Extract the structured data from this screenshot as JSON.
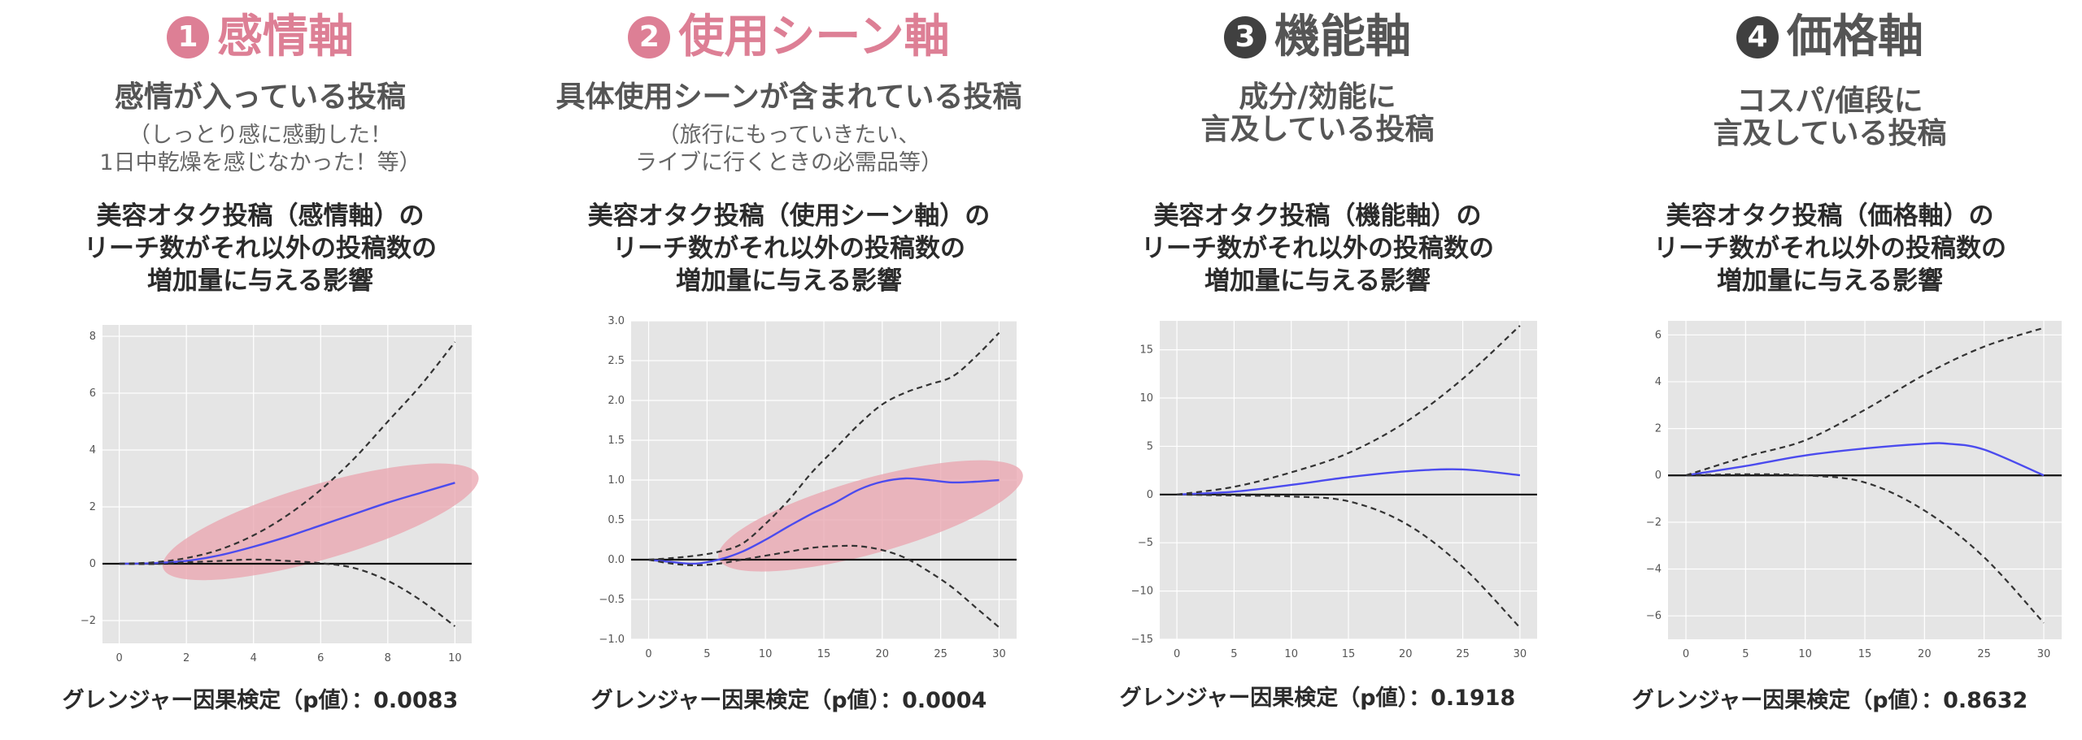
{
  "colors": {
    "pink_heading": "#dd7f95",
    "gray_heading": "#555555",
    "badge_gray": "#404040",
    "plot_bg": "#e5e5e5",
    "irf_line": "#4b4bee",
    "highlight": "#e9a3ae"
  },
  "panels": [
    {
      "number": "1",
      "title": "感情軸",
      "desc_lines": [
        "感情が入っている投稿"
      ],
      "note_lines": [
        "（しっとり感に感動した！",
        "1日中乾燥を感じなかった！等）"
      ],
      "chart_title_lines": [
        "美容オタク投稿（感情軸）の",
        "リーチ数がそれ以外の投稿数の",
        "増加量に与える影響"
      ],
      "pvalue_text": "グレンジャー因果検定（p値）：0.0083"
    },
    {
      "number": "2",
      "title": "使用シーン軸",
      "desc_lines": [
        "具体使用シーンが含まれている投稿"
      ],
      "note_lines": [
        "（旅行にもっていきたい、",
        "ライブに行くときの必需品等）"
      ],
      "chart_title_lines": [
        "美容オタク投稿（使用シーン軸）の",
        "リーチ数がそれ以外の投稿数の",
        "増加量に与える影響"
      ],
      "pvalue_text": "グレンジャー因果検定（p値）：0.0004"
    },
    {
      "number": "3",
      "title": "機能軸",
      "desc_lines": [
        "成分/効能に",
        "言及している投稿"
      ],
      "note_lines": [],
      "chart_title_lines": [
        "美容オタク投稿（機能軸）の",
        "リーチ数がそれ以外の投稿数の",
        "増加量に与える影響"
      ],
      "pvalue_text": "グレンジャー因果検定（p値）：0.1918"
    },
    {
      "number": "4",
      "title": "価格軸",
      "desc_lines": [
        "コスパ/値段に",
        "言及している投稿"
      ],
      "note_lines": [],
      "chart_title_lines": [
        "美容オタク投稿（価格軸）の",
        "リーチ数がそれ以外の投稿数の",
        "増加量に与える影響"
      ],
      "pvalue_text": "グレンジャー因果検定（p値）：0.8632"
    }
  ],
  "chart_data": [
    {
      "type": "line",
      "xlim": [
        -0.5,
        10.5
      ],
      "ylim": [
        -2.8,
        8.4
      ],
      "xticks": [
        0,
        2,
        4,
        6,
        8,
        10
      ],
      "yticks": [
        -2,
        0,
        2,
        4,
        6,
        8
      ],
      "highlighted": true,
      "series": [
        {
          "role": "irf",
          "x": [
            0,
            1,
            2,
            3,
            4,
            5,
            6,
            7,
            8,
            9,
            10
          ],
          "y": [
            0,
            0.02,
            0.1,
            0.3,
            0.6,
            0.95,
            1.35,
            1.75,
            2.15,
            2.5,
            2.85
          ]
        },
        {
          "role": "upper",
          "x": [
            0,
            1,
            2,
            3,
            4,
            5,
            6,
            7,
            8,
            9,
            10
          ],
          "y": [
            0,
            0.05,
            0.2,
            0.5,
            1.0,
            1.7,
            2.6,
            3.7,
            5.0,
            6.3,
            7.8
          ]
        },
        {
          "role": "lower",
          "x": [
            0,
            1,
            2,
            3,
            4,
            5,
            6,
            7,
            8,
            9,
            10
          ],
          "y": [
            0,
            -0.01,
            0.05,
            0.1,
            0.15,
            0.1,
            0.02,
            -0.15,
            -0.6,
            -1.3,
            -2.2
          ]
        }
      ],
      "grid": true,
      "legend": "none"
    },
    {
      "type": "line",
      "xlim": [
        -1.5,
        31.5
      ],
      "ylim": [
        -1.0,
        3.0
      ],
      "xticks": [
        0,
        5,
        10,
        15,
        20,
        25,
        30
      ],
      "yticks": [
        -1.0,
        -0.5,
        0.0,
        0.5,
        1.0,
        1.5,
        2.0,
        2.5,
        3.0
      ],
      "highlighted": true,
      "series": [
        {
          "role": "irf",
          "x": [
            0,
            2,
            4,
            6,
            8,
            10,
            12,
            14,
            16,
            18,
            20,
            22,
            24,
            26,
            28,
            30
          ],
          "y": [
            0,
            -0.03,
            -0.05,
            0.0,
            0.1,
            0.25,
            0.42,
            0.58,
            0.72,
            0.88,
            0.98,
            1.02,
            1.0,
            0.97,
            0.98,
            1.0
          ]
        },
        {
          "role": "upper",
          "x": [
            0,
            2,
            4,
            6,
            8,
            10,
            12,
            14,
            16,
            18,
            20,
            22,
            24,
            26,
            28,
            30
          ],
          "y": [
            0,
            0.02,
            0.05,
            0.1,
            0.2,
            0.45,
            0.75,
            1.1,
            1.4,
            1.7,
            1.95,
            2.1,
            2.2,
            2.3,
            2.55,
            2.85
          ]
        },
        {
          "role": "lower",
          "x": [
            0,
            2,
            4,
            6,
            8,
            10,
            12,
            14,
            16,
            18,
            20,
            22,
            24,
            26,
            28,
            30
          ],
          "y": [
            0,
            -0.05,
            -0.07,
            -0.05,
            0.0,
            0.05,
            0.1,
            0.15,
            0.17,
            0.17,
            0.12,
            0.02,
            -0.15,
            -0.35,
            -0.6,
            -0.85
          ]
        }
      ],
      "grid": true,
      "legend": "none"
    },
    {
      "type": "line",
      "xlim": [
        -1.5,
        31.5
      ],
      "ylim": [
        -15,
        18
      ],
      "xticks": [
        0,
        5,
        10,
        15,
        20,
        25,
        30
      ],
      "yticks": [
        -15,
        -10,
        -5,
        0,
        5,
        10,
        15
      ],
      "highlighted": false,
      "series": [
        {
          "role": "irf",
          "x": [
            0,
            5,
            10,
            15,
            20,
            25,
            30
          ],
          "y": [
            0,
            0.3,
            1.0,
            1.8,
            2.4,
            2.6,
            2.0
          ]
        },
        {
          "role": "upper",
          "x": [
            0,
            5,
            10,
            15,
            20,
            25,
            30
          ],
          "y": [
            0,
            0.8,
            2.3,
            4.3,
            7.5,
            12.0,
            17.5
          ]
        },
        {
          "role": "lower",
          "x": [
            0,
            5,
            10,
            15,
            20,
            25,
            30
          ],
          "y": [
            0,
            -0.1,
            -0.2,
            -0.7,
            -3.0,
            -7.5,
            -13.8
          ]
        }
      ],
      "grid": true,
      "legend": "none"
    },
    {
      "type": "line",
      "xlim": [
        -1.5,
        31.5
      ],
      "ylim": [
        -7,
        6.6
      ],
      "xticks": [
        0,
        5,
        10,
        15,
        20,
        25,
        30
      ],
      "yticks": [
        -6,
        -4,
        -2,
        0,
        2,
        4,
        6
      ],
      "highlighted": false,
      "series": [
        {
          "role": "irf",
          "x": [
            0,
            5,
            10,
            15,
            20,
            22,
            25,
            30
          ],
          "y": [
            0,
            0.4,
            0.85,
            1.15,
            1.35,
            1.35,
            1.1,
            0.0
          ]
        },
        {
          "role": "upper",
          "x": [
            0,
            5,
            10,
            15,
            20,
            25,
            30
          ],
          "y": [
            0,
            0.8,
            1.5,
            2.8,
            4.3,
            5.5,
            6.3
          ]
        },
        {
          "role": "lower",
          "x": [
            0,
            5,
            10,
            15,
            20,
            25,
            30
          ],
          "y": [
            0,
            0.05,
            0.0,
            -0.3,
            -1.5,
            -3.5,
            -6.3
          ]
        }
      ],
      "grid": true,
      "legend": "none"
    }
  ]
}
